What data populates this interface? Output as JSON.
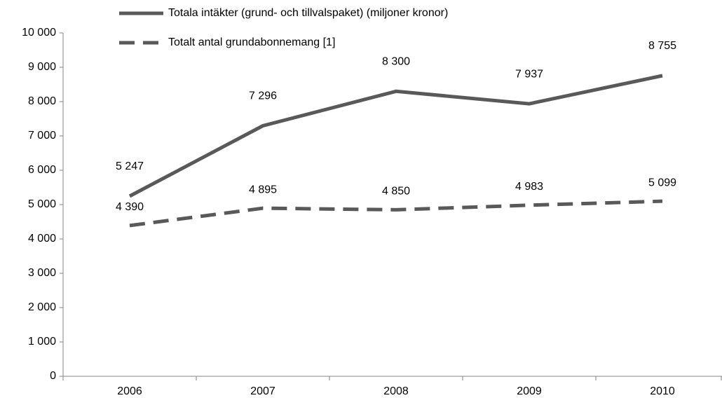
{
  "chart_data": {
    "type": "line",
    "categories": [
      "2006",
      "2007",
      "2008",
      "2009",
      "2010"
    ],
    "series": [
      {
        "name": "Totala intäkter (grund- och tillvalspaket) (miljoner kronor)",
        "color": "#595959",
        "dash": false,
        "values": [
          5247,
          7296,
          8300,
          7937,
          8755
        ],
        "value_labels": [
          "5 247",
          "7 296",
          "8 300",
          "7 937",
          "8 755"
        ]
      },
      {
        "name": "Totalt antal grundabonnemang [1]",
        "color": "#595959",
        "dash": true,
        "values": [
          4390,
          4895,
          4850,
          4983,
          5099
        ],
        "value_labels": [
          "4 390",
          "4 895",
          "4 850",
          "4 983",
          "5 099"
        ]
      }
    ],
    "ylim": [
      0,
      10000
    ],
    "yticks": [
      0,
      {
        "value": 1000,
        "label": "1 000"
      },
      {
        "value": 2000,
        "label": "2 000"
      },
      {
        "value": 3000,
        "label": "3 000"
      },
      {
        "value": 4000,
        "label": "4 000"
      },
      {
        "value": 5000,
        "label": "5 000"
      },
      {
        "value": 6000,
        "label": "6 000"
      },
      {
        "value": 7000,
        "label": "7 000"
      },
      {
        "value": 8000,
        "label": "8 000"
      },
      {
        "value": 9000,
        "label": "9 000"
      },
      {
        "value": 10000,
        "label": "10 000"
      }
    ],
    "grid": false,
    "legend": "top"
  }
}
